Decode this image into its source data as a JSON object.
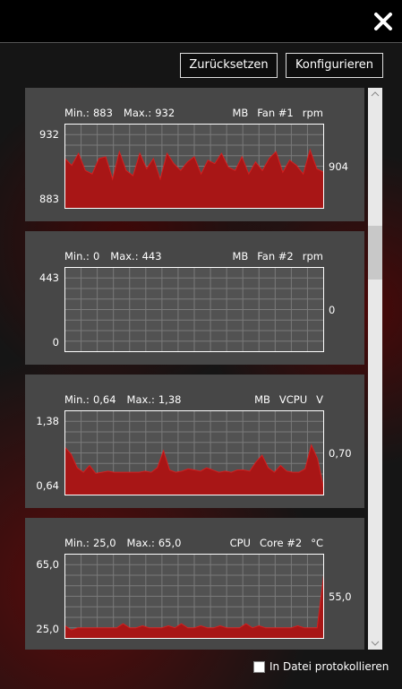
{
  "buttons": {
    "reset": "Zurücksetzen",
    "configure": "Konfigurieren"
  },
  "panels": [
    {
      "min_caption": "Min.:",
      "min": 883,
      "max_caption": "Max.:",
      "max": 932,
      "source": "MB",
      "sensor": "Fan #1",
      "unit": "rpm",
      "current": 904,
      "values": [
        912,
        908,
        915,
        905,
        903,
        912,
        913,
        900,
        916,
        905,
        902,
        915,
        906,
        912,
        900,
        915,
        909,
        905,
        910,
        913,
        903,
        911,
        909,
        915,
        907,
        905,
        913,
        903,
        910,
        905,
        912,
        916,
        904,
        911,
        908,
        903,
        917,
        906,
        904
      ]
    },
    {
      "min_caption": "Min.:",
      "min": 0,
      "max_caption": "Max.:",
      "max": 443,
      "source": "MB",
      "sensor": "Fan #2",
      "unit": "rpm",
      "current": 0,
      "values": [
        0,
        0,
        0,
        0,
        0,
        0,
        0,
        0,
        0,
        0,
        0,
        0,
        0,
        0,
        0,
        0,
        0,
        0,
        0,
        0,
        0,
        0,
        0,
        0,
        0,
        0,
        0,
        0,
        0,
        0,
        0,
        0,
        0,
        0,
        0,
        0,
        0,
        0,
        0
      ]
    },
    {
      "min_caption": "Min.:",
      "min": {
        "value": 0.64,
        "label": "0,64"
      },
      "max_caption": "Max.:",
      "max": {
        "value": 1.38,
        "label": "1,38"
      },
      "source": "MB",
      "sensor": "VCPU",
      "unit": "V",
      "current": {
        "value": 0.7,
        "label": "0,70"
      },
      "values": [
        1.06,
        1.0,
        0.88,
        0.84,
        0.9,
        0.83,
        0.84,
        0.85,
        0.84,
        0.84,
        0.84,
        0.84,
        0.84,
        0.85,
        0.84,
        0.88,
        1.03,
        0.86,
        0.84,
        0.85,
        0.87,
        0.86,
        0.85,
        0.88,
        0.86,
        0.84,
        0.85,
        0.84,
        0.86,
        0.86,
        0.85,
        0.93,
        0.99,
        0.88,
        0.84,
        0.9,
        0.85,
        0.84,
        0.84,
        0.87,
        1.08,
        0.96,
        0.7
      ]
    },
    {
      "min_caption": "Min.:",
      "min": {
        "value": 25.0,
        "label": "25,0"
      },
      "max_caption": "Max.:",
      "max": {
        "value": 65.0,
        "label": "65,0"
      },
      "source": "CPU",
      "sensor": "Core #2",
      "unit": "°C",
      "current": {
        "value": 55.0,
        "label": "55,0"
      },
      "values": [
        31,
        29,
        30,
        30,
        30,
        30,
        30,
        30,
        30,
        32,
        30,
        30,
        31,
        30,
        30,
        30,
        31,
        30,
        32,
        30,
        30,
        31,
        30,
        30,
        31,
        30,
        30,
        30,
        32,
        30,
        31,
        30,
        30,
        30,
        30,
        30,
        31,
        30,
        30,
        30,
        55
      ]
    }
  ],
  "log_to_file": "In Datei protokollieren"
}
